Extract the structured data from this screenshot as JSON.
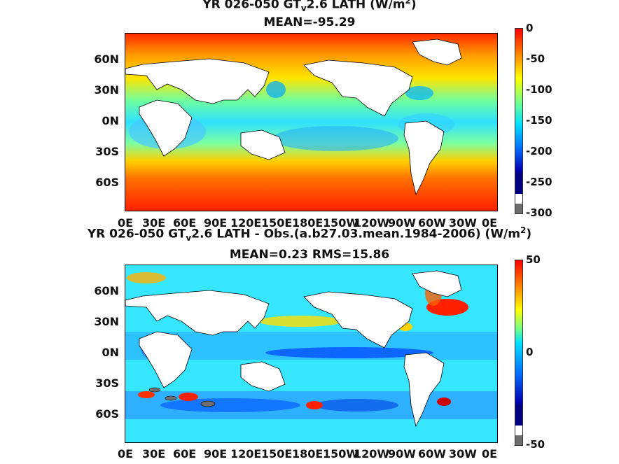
{
  "panel1": {
    "title_a": "YR 026-050 GT",
    "title_sub": "v",
    "title_b": "2.6  LATH (W/m",
    "title_sup": "2",
    "title_c": ")",
    "stat_line": "MEAN=-95.29",
    "colorbar_ticks": [
      "0",
      "-50",
      "-100",
      "-150",
      "-200",
      "-250",
      "-300"
    ]
  },
  "panel2": {
    "title_a": "YR 026-050 GT",
    "title_sub": "v",
    "title_b": "2.6 LATH - Obs.(a.b27.03.mean.1984-2006) (W/m",
    "title_sup": "2",
    "title_c": ")",
    "stat_line": "MEAN=0.23 RMS=15.86",
    "colorbar_ticks": [
      "50",
      "0",
      "-50"
    ]
  },
  "axes": {
    "lat_labels": [
      "60N",
      "30N",
      "0N",
      "30S",
      "60S"
    ],
    "lon_labels": [
      "0E",
      "30E",
      "60E",
      "90E",
      "120E",
      "150E",
      "180E",
      "150W",
      "120W",
      "90W",
      "60W",
      "30W",
      "0E"
    ]
  },
  "colors": {
    "cmap": [
      "#7f0000",
      "#ff0000",
      "#ff6a00",
      "#ffb000",
      "#ffff00",
      "#9dff5a",
      "#3cffc3",
      "#00d4ff",
      "#0080ff",
      "#0026ff",
      "#00008f"
    ],
    "land": "#ffffff",
    "missing": "#6e6e6e"
  }
}
